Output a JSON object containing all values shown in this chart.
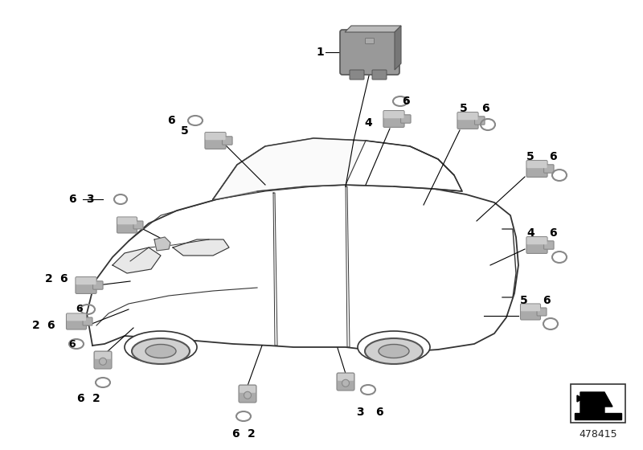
{
  "bg_color": "#ffffff",
  "sensor_color": "#aaaaaa",
  "sensor_dark": "#888888",
  "sensor_light": "#cccccc",
  "module_color": "#999999",
  "module_dark": "#777777",
  "module_light": "#bbbbbb",
  "label_color": "#000000",
  "line_color": "#000000",
  "car_line_color": "#333333",
  "ring_color": "#888888",
  "part_number": "478415",
  "label_fontsize": 9,
  "num_fontsize": 10
}
